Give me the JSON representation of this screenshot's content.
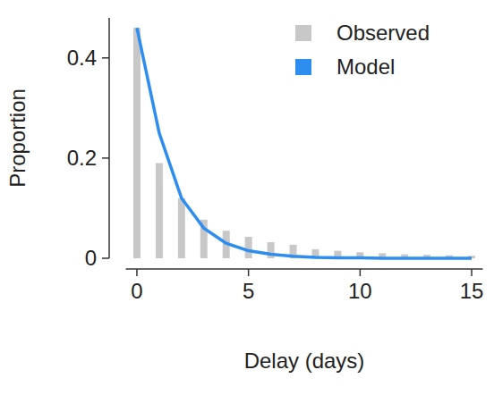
{
  "chart_data": {
    "type": "bar",
    "x_label": "Delay (days)",
    "y_label": "Proportion",
    "x": [
      0,
      1,
      2,
      3,
      4,
      5,
      6,
      7,
      8,
      9,
      10,
      11,
      12,
      13,
      14,
      15
    ],
    "series": [
      {
        "name": "Observed",
        "type": "bar",
        "color": "#c8c8c8",
        "values": [
          0.46,
          0.19,
          0.12,
          0.077,
          0.055,
          0.043,
          0.032,
          0.027,
          0.018,
          0.015,
          0.012,
          0.01,
          0.008,
          0.007,
          0.006,
          0.005
        ]
      },
      {
        "name": "Model",
        "type": "line",
        "color": "#2e8ef0",
        "values": [
          0.46,
          0.25,
          0.12,
          0.06,
          0.03,
          0.015,
          0.008,
          0.004,
          0.002,
          0.001,
          0.001,
          0,
          0,
          0,
          0,
          0
        ]
      }
    ],
    "xlim": [
      -0.5,
      15.5
    ],
    "ylim": [
      0,
      0.48
    ],
    "xticks": [
      0,
      5,
      10,
      15
    ],
    "yticks": [
      0,
      0.2,
      0.4
    ],
    "legend": "top-right"
  }
}
